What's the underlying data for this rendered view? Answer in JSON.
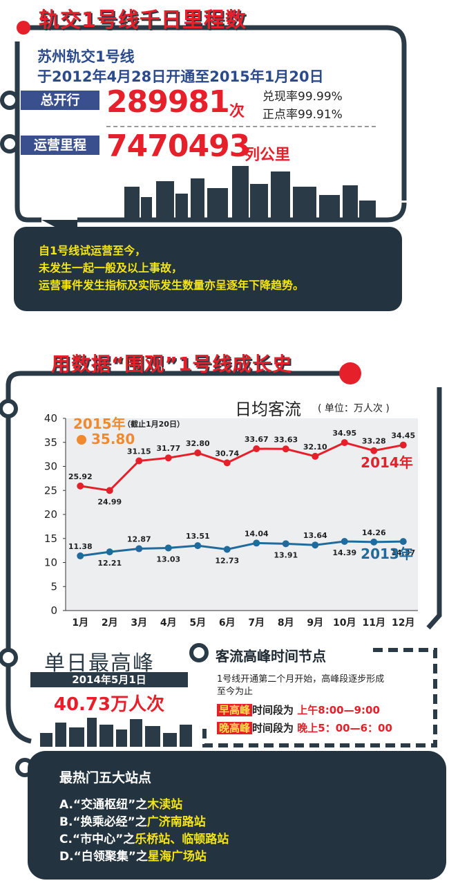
{
  "section1": {
    "title": "轨交1号线千日里程数",
    "subtitle_line1": "苏州轨交1号线",
    "subtitle_line2": "于2012年4月28日开通至2015年1月20日",
    "total_runs": {
      "label": "总开行",
      "value": "289981",
      "unit": "次"
    },
    "rates": {
      "fulfillment": "兑现率99.99%",
      "punctuality": "正点率99.91%"
    },
    "mileage": {
      "label": "运营里程",
      "value": "7470493",
      "unit": "列公里"
    },
    "note": [
      "自1号线试运营至今，",
      "未发生一起一般及以上事故，",
      "运营事件发生指标及实际发生数量亦呈逐年下降趋势。"
    ]
  },
  "section2": {
    "title": "用数据“围观”1号线成长史"
  },
  "chart_data": {
    "type": "line",
    "title": "日均客流",
    "unit_note": "( 单位：万人次 )",
    "categories": [
      "1月",
      "2月",
      "3月",
      "4月",
      "5月",
      "6月",
      "7月",
      "8月",
      "9月",
      "10月",
      "11月",
      "12月"
    ],
    "ylim": [
      0,
      40
    ],
    "yticks": [
      "0",
      "5",
      "10",
      "15",
      "20",
      "25",
      "30",
      "35",
      "40"
    ],
    "series": [
      {
        "name": "2014年",
        "color": "#e5202a",
        "values": [
          25.92,
          24.99,
          31.15,
          31.77,
          32.8,
          30.74,
          33.67,
          33.63,
          32.1,
          34.95,
          33.28,
          34.45
        ],
        "labels": [
          "25.92",
          "24.99",
          "31.15",
          "31.77",
          "32.80",
          "30.74",
          "33.67",
          "33.63",
          "32.10",
          "34.95",
          "33.28",
          "34.45"
        ]
      },
      {
        "name": "2013年",
        "color": "#1f6b9c",
        "values": [
          11.38,
          12.21,
          12.87,
          13.03,
          13.51,
          12.73,
          14.04,
          13.91,
          13.64,
          14.39,
          14.26,
          14.37
        ],
        "labels": [
          "11.38",
          "12.21",
          "12.87",
          "13.03",
          "13.51",
          "12.73",
          "14.04",
          "13.91",
          "13.64",
          "14.39",
          "14.26",
          "14.37"
        ]
      }
    ],
    "annotation": {
      "name": "2015年",
      "note": "（截止1月20日）",
      "value": "35.80",
      "color": "#f08a2c"
    }
  },
  "peak_day": {
    "title": "单日最高峰",
    "date": "2014年5月1日",
    "value": "40.73万人次"
  },
  "peak_time": {
    "title": "客流高峰时间节点",
    "desc_line1": "1号线开通第二个月开始，高峰段逐步形成",
    "desc_line2": "至今为止",
    "morning": {
      "tag": "早高峰",
      "mid": "时间段为",
      "time": "上午8:00—9:00"
    },
    "evening": {
      "tag": "晚高峰",
      "mid": "时间段为",
      "time": "晚上5：00—6：00"
    }
  },
  "stations": {
    "title": "最热门五大站点",
    "items": [
      {
        "prefix": "A.“交通枢纽”之",
        "station": "木渎站"
      },
      {
        "prefix": "B.“换乘必经”之",
        "station": "广济南路站"
      },
      {
        "prefix": "C.“市中心”之",
        "station": "乐桥站、临顿路站"
      },
      {
        "prefix": "D.“白领聚集”之",
        "station": "星海广场站"
      }
    ]
  }
}
